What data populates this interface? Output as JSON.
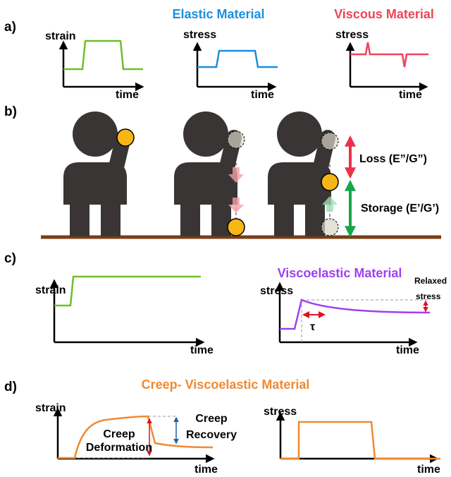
{
  "panel_a": {
    "label": "a)",
    "plots": [
      {
        "ylabel": "strain",
        "xlabel": "time"
      },
      {
        "title": "Elastic Material",
        "ylabel": "stress",
        "xlabel": "time"
      },
      {
        "title": "Viscous Material",
        "ylabel": "stress",
        "xlabel": "time"
      }
    ]
  },
  "panel_b": {
    "label": "b)",
    "loss": "Loss (E”/G”)",
    "storage": "Storage (E’/G’)"
  },
  "panel_c": {
    "label": "c)",
    "title": "Viscoelastic Material",
    "plots": [
      {
        "ylabel": "strain",
        "xlabel": "time"
      },
      {
        "ylabel": "stress",
        "xlabel": "time",
        "relaxed": [
          "Relaxed",
          "stress"
        ],
        "tau": "τ"
      }
    ]
  },
  "panel_d": {
    "label": "d)",
    "title": "Creep- Viscoelastic Material",
    "plots": [
      {
        "ylabel": "strain",
        "xlabel": "time",
        "deformation": [
          "Creep",
          "Deformation"
        ],
        "recovery": [
          "Creep",
          "Recovery"
        ]
      },
      {
        "ylabel": "stress",
        "xlabel": "time"
      }
    ]
  }
}
